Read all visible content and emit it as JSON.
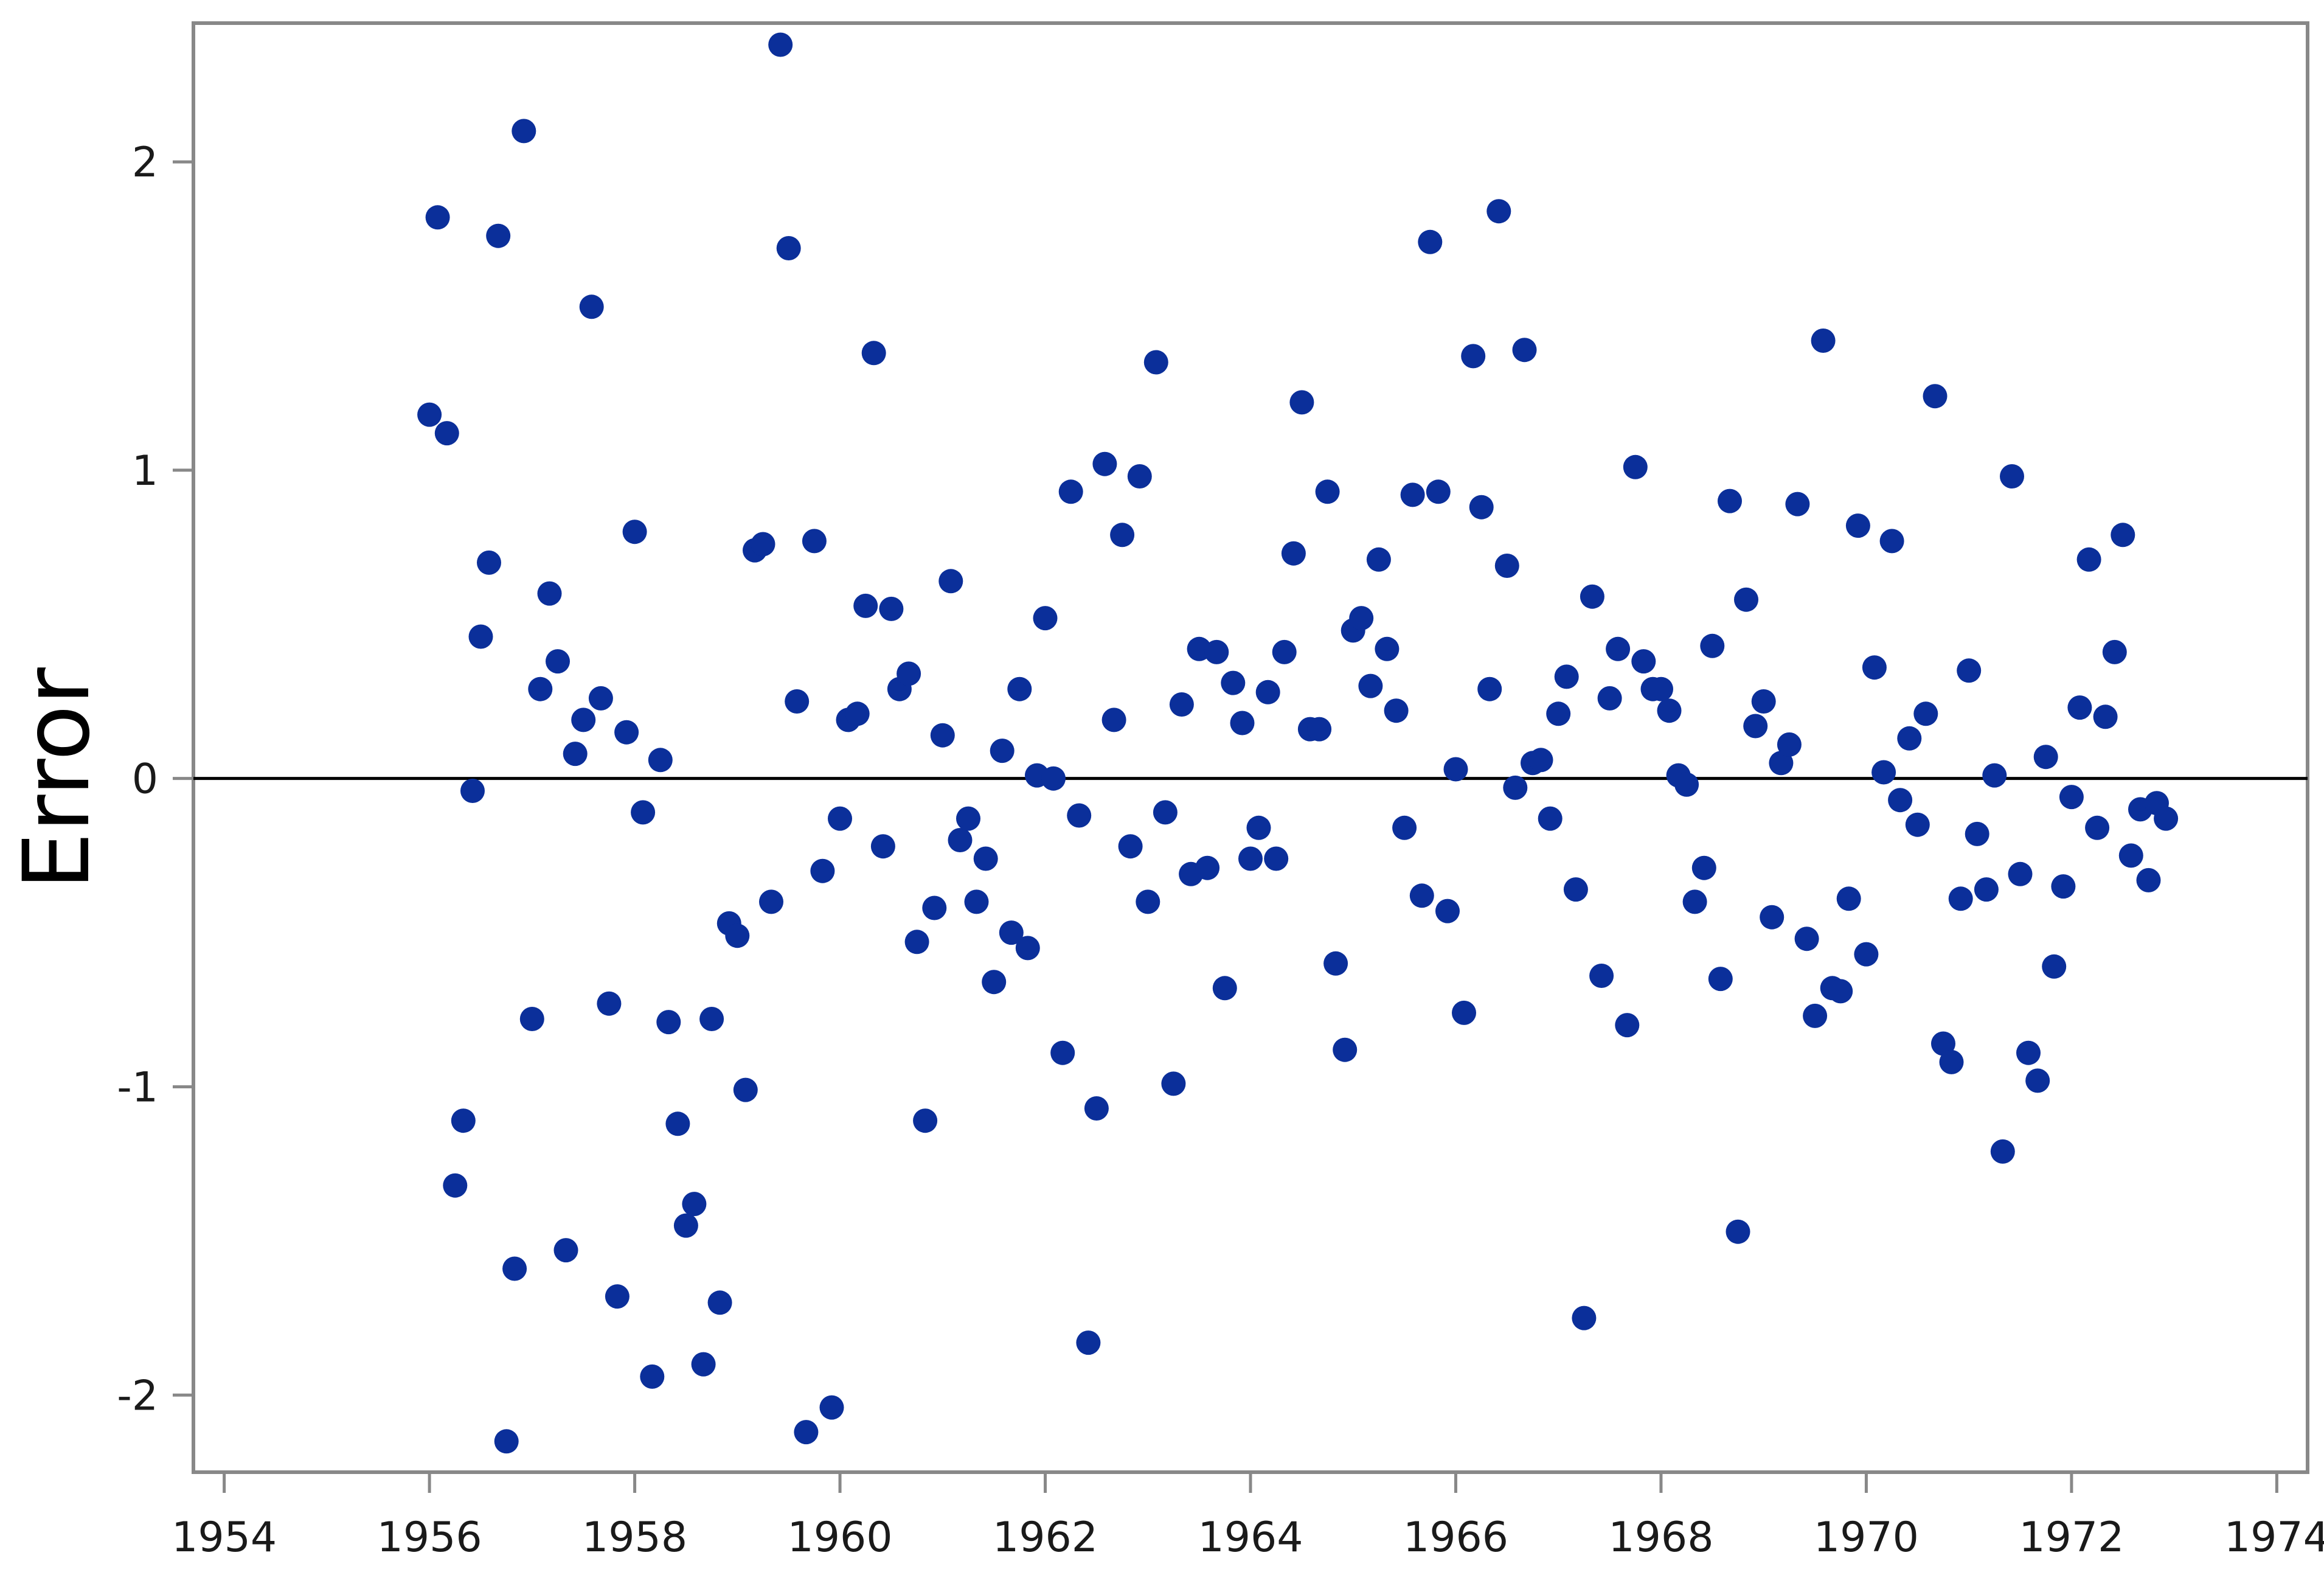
{
  "chart_data": {
    "type": "scatter",
    "title": "",
    "xlabel": "",
    "ylabel": "Error",
    "xlim": [
      1953.7,
      1974.3
    ],
    "ylim": [
      -2.25,
      2.45
    ],
    "x_ticks": [
      1954,
      1956,
      1958,
      1960,
      1962,
      1964,
      1966,
      1968,
      1970,
      1972,
      1974
    ],
    "y_ticks": [
      -2,
      -1,
      0,
      1,
      2
    ],
    "y_tick_labels": [
      "-2",
      "-1",
      "0",
      "1",
      "2"
    ],
    "reference_line_y": 0,
    "grid": false,
    "legend": "none",
    "marker_color": "#0b2f9a",
    "axis_color": "#888888",
    "series": [
      {
        "points": [
          [
            1956.0,
            1.18
          ],
          [
            1956.08,
            1.82
          ],
          [
            1956.17,
            1.12
          ],
          [
            1956.25,
            -1.32
          ],
          [
            1956.33,
            -1.11
          ],
          [
            1956.42,
            -0.04
          ],
          [
            1956.5,
            0.46
          ],
          [
            1956.58,
            0.7
          ],
          [
            1956.67,
            1.76
          ],
          [
            1956.75,
            -2.15
          ],
          [
            1956.83,
            -1.59
          ],
          [
            1956.92,
            2.1
          ],
          [
            1957.0,
            -0.78
          ],
          [
            1957.08,
            0.29
          ],
          [
            1957.17,
            0.6
          ],
          [
            1957.25,
            0.38
          ],
          [
            1957.33,
            -1.53
          ],
          [
            1957.42,
            0.08
          ],
          [
            1957.5,
            0.19
          ],
          [
            1957.58,
            1.53
          ],
          [
            1957.67,
            0.26
          ],
          [
            1957.75,
            -0.73
          ],
          [
            1957.83,
            -1.68
          ],
          [
            1957.92,
            0.15
          ],
          [
            1958.0,
            0.8
          ],
          [
            1958.08,
            -0.11
          ],
          [
            1958.17,
            -1.94
          ],
          [
            1958.25,
            0.06
          ],
          [
            1958.33,
            -0.79
          ],
          [
            1958.42,
            -1.12
          ],
          [
            1958.5,
            -1.45
          ],
          [
            1958.58,
            -1.38
          ],
          [
            1958.67,
            -1.9
          ],
          [
            1958.75,
            -0.78
          ],
          [
            1958.83,
            -1.7
          ],
          [
            1958.92,
            -0.47
          ],
          [
            1959.0,
            -0.51
          ],
          [
            1959.08,
            -1.01
          ],
          [
            1959.17,
            0.74
          ],
          [
            1959.25,
            0.76
          ],
          [
            1959.33,
            -0.4
          ],
          [
            1959.42,
            2.38
          ],
          [
            1959.5,
            1.72
          ],
          [
            1959.58,
            0.25
          ],
          [
            1959.67,
            -2.12
          ],
          [
            1959.75,
            0.77
          ],
          [
            1959.83,
            -0.3
          ],
          [
            1959.92,
            -2.04
          ],
          [
            1960.0,
            -0.13
          ],
          [
            1960.08,
            0.19
          ],
          [
            1960.17,
            0.21
          ],
          [
            1960.25,
            0.56
          ],
          [
            1960.33,
            1.38
          ],
          [
            1960.42,
            -0.22
          ],
          [
            1960.5,
            0.55
          ],
          [
            1960.58,
            0.29
          ],
          [
            1960.67,
            0.34
          ],
          [
            1960.75,
            -0.53
          ],
          [
            1960.83,
            -1.11
          ],
          [
            1960.92,
            -0.42
          ],
          [
            1961.0,
            0.14
          ],
          [
            1961.08,
            0.64
          ],
          [
            1961.17,
            -0.2
          ],
          [
            1961.25,
            -0.13
          ],
          [
            1961.33,
            -0.4
          ],
          [
            1961.42,
            -0.26
          ],
          [
            1961.5,
            -0.66
          ],
          [
            1961.58,
            0.09
          ],
          [
            1961.67,
            -0.5
          ],
          [
            1961.75,
            0.29
          ],
          [
            1961.83,
            -0.55
          ],
          [
            1961.92,
            0.01
          ],
          [
            1962.0,
            0.52
          ],
          [
            1962.08,
            0.0
          ],
          [
            1962.17,
            -0.89
          ],
          [
            1962.25,
            0.93
          ],
          [
            1962.33,
            -0.12
          ],
          [
            1962.42,
            -1.83
          ],
          [
            1962.5,
            -1.07
          ],
          [
            1962.58,
            1.02
          ],
          [
            1962.67,
            0.19
          ],
          [
            1962.75,
            0.79
          ],
          [
            1962.83,
            -0.22
          ],
          [
            1962.92,
            0.98
          ],
          [
            1963.0,
            -0.4
          ],
          [
            1963.08,
            1.35
          ],
          [
            1963.17,
            -0.11
          ],
          [
            1963.25,
            -0.99
          ],
          [
            1963.33,
            0.24
          ],
          [
            1963.42,
            -0.31
          ],
          [
            1963.5,
            0.42
          ],
          [
            1963.58,
            -0.29
          ],
          [
            1963.67,
            0.41
          ],
          [
            1963.75,
            -0.68
          ],
          [
            1963.83,
            0.31
          ],
          [
            1963.92,
            0.18
          ],
          [
            1964.0,
            -0.26
          ],
          [
            1964.08,
            -0.16
          ],
          [
            1964.17,
            0.28
          ],
          [
            1964.25,
            -0.26
          ],
          [
            1964.33,
            0.41
          ],
          [
            1964.42,
            0.73
          ],
          [
            1964.5,
            1.22
          ],
          [
            1964.58,
            0.16
          ],
          [
            1964.67,
            0.16
          ],
          [
            1964.75,
            0.93
          ],
          [
            1964.83,
            -0.6
          ],
          [
            1964.92,
            -0.88
          ],
          [
            1965.0,
            0.48
          ],
          [
            1965.08,
            0.52
          ],
          [
            1965.17,
            0.3
          ],
          [
            1965.25,
            0.71
          ],
          [
            1965.33,
            0.42
          ],
          [
            1965.42,
            0.22
          ],
          [
            1965.5,
            -0.16
          ],
          [
            1965.58,
            0.92
          ],
          [
            1965.67,
            -0.38
          ],
          [
            1965.75,
            1.74
          ],
          [
            1965.83,
            0.93
          ],
          [
            1965.92,
            -0.43
          ],
          [
            1966.0,
            0.03
          ],
          [
            1966.08,
            -0.76
          ],
          [
            1966.17,
            1.37
          ],
          [
            1966.25,
            0.88
          ],
          [
            1966.33,
            0.29
          ],
          [
            1966.42,
            1.84
          ],
          [
            1966.5,
            0.69
          ],
          [
            1966.58,
            -0.03
          ],
          [
            1966.67,
            1.39
          ],
          [
            1966.75,
            0.05
          ],
          [
            1966.83,
            0.06
          ],
          [
            1966.92,
            -0.13
          ],
          [
            1967.0,
            0.21
          ],
          [
            1967.08,
            0.33
          ],
          [
            1967.17,
            -0.36
          ],
          [
            1967.25,
            -1.75
          ],
          [
            1967.33,
            0.59
          ],
          [
            1967.42,
            -0.64
          ],
          [
            1967.5,
            0.26
          ],
          [
            1967.58,
            0.42
          ],
          [
            1967.67,
            -0.8
          ],
          [
            1967.75,
            1.01
          ],
          [
            1967.83,
            0.38
          ],
          [
            1967.92,
            0.29
          ],
          [
            1968.0,
            0.29
          ],
          [
            1968.08,
            0.22
          ],
          [
            1968.17,
            0.01
          ],
          [
            1968.25,
            -0.02
          ],
          [
            1968.33,
            -0.4
          ],
          [
            1968.42,
            -0.29
          ],
          [
            1968.5,
            0.43
          ],
          [
            1968.58,
            -0.65
          ],
          [
            1968.67,
            0.9
          ],
          [
            1968.75,
            -1.47
          ],
          [
            1968.83,
            0.58
          ],
          [
            1968.92,
            0.17
          ],
          [
            1969.0,
            0.25
          ],
          [
            1969.08,
            -0.45
          ],
          [
            1969.17,
            0.05
          ],
          [
            1969.25,
            0.11
          ],
          [
            1969.33,
            0.89
          ],
          [
            1969.42,
            -0.52
          ],
          [
            1969.5,
            -0.77
          ],
          [
            1969.58,
            1.42
          ],
          [
            1969.67,
            -0.68
          ],
          [
            1969.75,
            -0.69
          ],
          [
            1969.83,
            -0.39
          ],
          [
            1969.92,
            0.82
          ],
          [
            1970.0,
            -0.57
          ],
          [
            1970.08,
            0.36
          ],
          [
            1970.17,
            0.02
          ],
          [
            1970.25,
            0.77
          ],
          [
            1970.33,
            -0.07
          ],
          [
            1970.42,
            0.13
          ],
          [
            1970.5,
            -0.15
          ],
          [
            1970.58,
            0.21
          ],
          [
            1970.67,
            1.24
          ],
          [
            1970.75,
            -0.86
          ],
          [
            1970.83,
            -0.92
          ],
          [
            1970.92,
            -0.39
          ],
          [
            1971.0,
            0.35
          ],
          [
            1971.08,
            -0.18
          ],
          [
            1971.17,
            -0.36
          ],
          [
            1971.25,
            0.01
          ],
          [
            1971.33,
            -1.21
          ],
          [
            1971.42,
            0.98
          ],
          [
            1971.5,
            -0.31
          ],
          [
            1971.58,
            -0.89
          ],
          [
            1971.67,
            -0.98
          ],
          [
            1971.75,
            0.07
          ],
          [
            1971.83,
            -0.61
          ],
          [
            1971.92,
            -0.35
          ],
          [
            1972.0,
            -0.06
          ],
          [
            1972.08,
            0.23
          ],
          [
            1972.17,
            0.71
          ],
          [
            1972.25,
            -0.16
          ],
          [
            1972.33,
            0.2
          ],
          [
            1972.42,
            0.41
          ],
          [
            1972.5,
            0.79
          ],
          [
            1972.58,
            -0.25
          ],
          [
            1972.67,
            -0.1
          ],
          [
            1972.75,
            -0.33
          ],
          [
            1972.83,
            -0.08
          ],
          [
            1972.92,
            -0.13
          ]
        ]
      }
    ]
  }
}
